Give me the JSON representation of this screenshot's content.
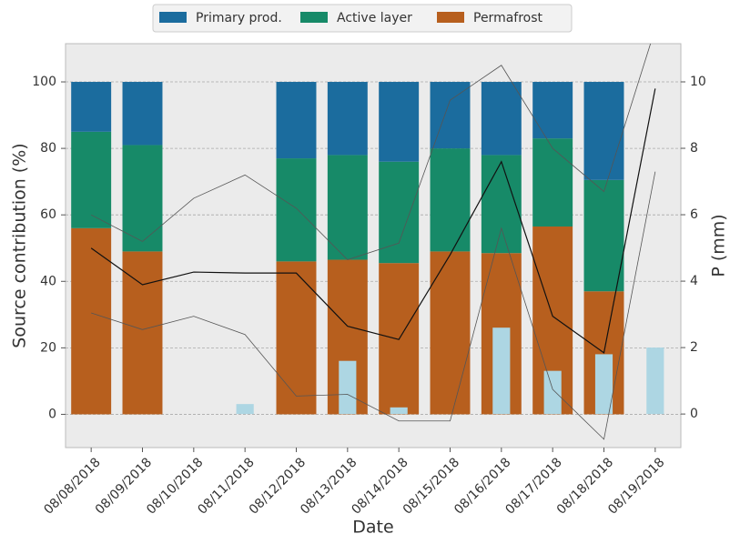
{
  "chart_data": {
    "type": "bar",
    "categories": [
      "08/08/2018",
      "08/09/2018",
      "08/10/2018",
      "08/11/2018",
      "08/12/2018",
      "08/13/2018",
      "08/14/2018",
      "08/15/2018",
      "08/16/2018",
      "08/17/2018",
      "08/18/2018",
      "08/19/2018"
    ],
    "series": [
      {
        "name": "Primary prod.",
        "color": "#1b6c9e",
        "values": [
          15,
          19,
          null,
          null,
          23,
          22,
          24,
          20,
          22,
          17,
          29.5,
          null
        ]
      },
      {
        "name": "Active layer",
        "color": "#178a68",
        "values": [
          29,
          32,
          null,
          null,
          31,
          31.5,
          30.5,
          31,
          29.5,
          26.5,
          33.5,
          null
        ]
      },
      {
        "name": "Permafrost",
        "color": "#b75f1e",
        "values": [
          56,
          49,
          null,
          null,
          46,
          46.5,
          45.5,
          49,
          48.5,
          56.5,
          37,
          null
        ]
      }
    ],
    "precipitation": {
      "color": "#add6e3",
      "axis": "y2",
      "values": [
        0,
        0,
        0,
        0.3,
        0,
        1.6,
        0.2,
        0,
        2.6,
        1.3,
        1.8,
        2.0
      ]
    },
    "lines": [
      {
        "color": "#111111",
        "width": 1.2,
        "values": [
          50,
          39,
          42.8,
          42.5,
          42.5,
          26.5,
          22.5,
          48,
          76,
          29.5,
          18.5,
          98
        ]
      },
      {
        "color": "#555555",
        "width": 0.8,
        "values": [
          60,
          52,
          65,
          72,
          62,
          46.5,
          51.5,
          94.5,
          105,
          80,
          67,
          116
        ]
      },
      {
        "color": "#555555",
        "width": 0.8,
        "values": [
          30.5,
          25.5,
          29.5,
          24,
          5.5,
          6,
          -2,
          -2,
          56,
          7.5,
          -7.5,
          73
        ]
      }
    ],
    "xlabel": "Date",
    "ylabel": "Source contribution (%)",
    "y2label": "P (mm)",
    "ylim": [
      -10,
      111.5
    ],
    "yticks": [
      0,
      20,
      40,
      60,
      80,
      100
    ],
    "y2lim": [
      -1.01,
      11.15
    ],
    "y2ticks": [
      0,
      2,
      4,
      6,
      8,
      10
    ],
    "grid": true,
    "legend": "top"
  }
}
